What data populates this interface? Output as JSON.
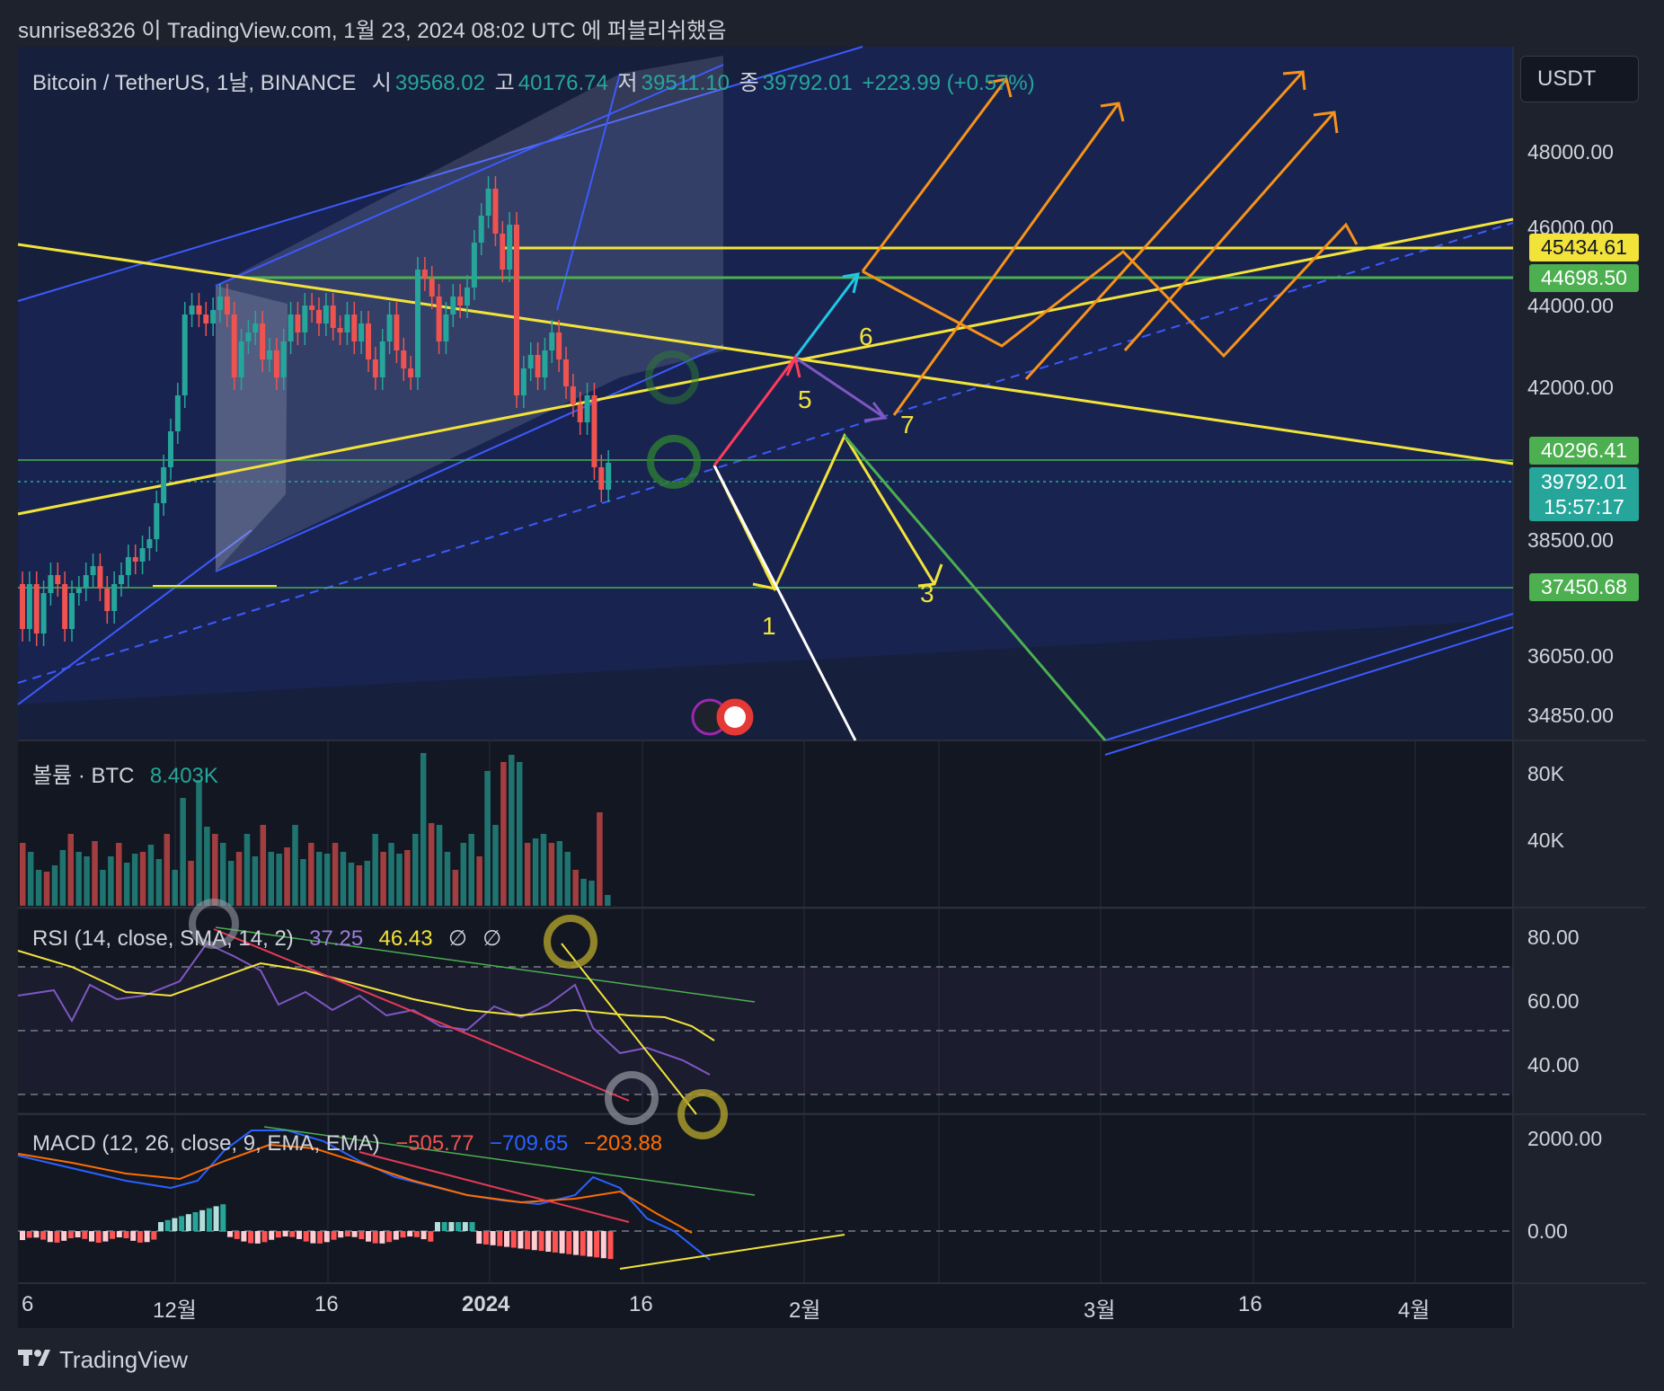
{
  "header": {
    "publish_line": "sunrise8326 이 TradingView.com, 1월 23, 2024 08:02 UTC 에 퍼블리쉬했음"
  },
  "price_pane": {
    "symbol": "Bitcoin / TetherUS, 1날, BINANCE",
    "open_label": "시",
    "open": "39568.02",
    "high_label": "고",
    "high": "40176.74",
    "low_label": "저",
    "low": "39511.10",
    "close_label": "종",
    "close": "39792.01",
    "change": "+223.99 (+0.57%)",
    "currency": "USDT",
    "y_ticks": [
      "48000.00",
      "46000.00",
      "44000.00",
      "42000.00",
      "38500.00",
      "36050.00",
      "34850.00"
    ],
    "price_tags": {
      "t1": "45434.61",
      "t2": "44698.50",
      "t3": "40296.41",
      "t4": "39792.01",
      "t4_countdown": "15:57:17",
      "t5": "37450.68"
    },
    "wave_labels": [
      "1",
      "3",
      "5",
      "6",
      "7"
    ],
    "colors": {
      "up": "#26a69a",
      "down": "#ef5350",
      "yellow": "#f2e33b",
      "green_tag": "#4caf50",
      "orange": "#f7931a"
    }
  },
  "volume_pane": {
    "title": "볼륨 · BTC",
    "value": "8.403K",
    "y_ticks": [
      "80K",
      "40K"
    ]
  },
  "rsi_pane": {
    "title": "RSI (14, close, SMA, 14, 2)",
    "rsi": "37.25",
    "sma": "46.43",
    "extra1": "∅",
    "extra2": "∅",
    "y_ticks": [
      "80.00",
      "60.00",
      "40.00"
    ]
  },
  "macd_pane": {
    "title": "MACD (12, 26, close, 9, EMA, EMA)",
    "hist": "−505.77",
    "macd": "−709.65",
    "signal": "−203.88",
    "y_ticks": [
      "2000.00",
      "0.00"
    ]
  },
  "x_axis": {
    "labels": [
      "6",
      "12월",
      "16",
      "2024",
      "16",
      "2월",
      "3월",
      "16",
      "4월"
    ]
  },
  "footer": {
    "brand": "TradingView"
  }
}
